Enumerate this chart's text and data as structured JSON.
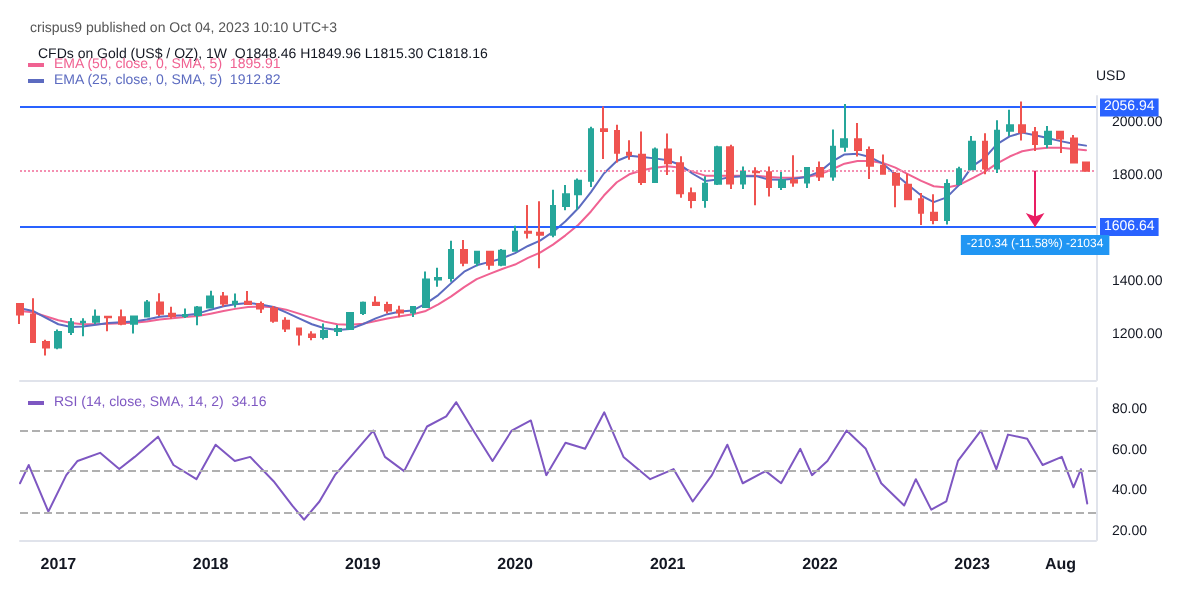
{
  "chart_data": [
    {
      "type": "candlestick",
      "title": "CFDs on Gold (US$ / OZ), 1W  O1848.46 H1849.96 L1815.30 C1818.16",
      "subtitle": "crispus9 published on Oct 04, 2023 10:10 UTC+3",
      "ylabel": "USD",
      "x": [
        "2016-10",
        "2016-11",
        "2016-12",
        "2017-01",
        "2017-02",
        "2017-03",
        "2017-04",
        "2017-05",
        "2017-06",
        "2017-07",
        "2017-08",
        "2017-09",
        "2017-10",
        "2017-11",
        "2017-12",
        "2018-01",
        "2018-02",
        "2018-03",
        "2018-04",
        "2018-05",
        "2018-06",
        "2018-07",
        "2018-08",
        "2018-09",
        "2018-10",
        "2018-11",
        "2018-12",
        "2019-01",
        "2019-02",
        "2019-03",
        "2019-04",
        "2019-05",
        "2019-06",
        "2019-07",
        "2019-08",
        "2019-09",
        "2019-10",
        "2019-11",
        "2019-12",
        "2020-01",
        "2020-02",
        "2020-03",
        "2020-04",
        "2020-05",
        "2020-06",
        "2020-07",
        "2020-08",
        "2020-09",
        "2020-10",
        "2020-11",
        "2020-12",
        "2021-01",
        "2021-02",
        "2021-03",
        "2021-04",
        "2021-05",
        "2021-06",
        "2021-07",
        "2021-08",
        "2021-09",
        "2021-10",
        "2021-11",
        "2021-12",
        "2022-01",
        "2022-02",
        "2022-03",
        "2022-04",
        "2022-05",
        "2022-06",
        "2022-07",
        "2022-08",
        "2022-09",
        "2022-10",
        "2022-11",
        "2022-12",
        "2023-01",
        "2023-02",
        "2023-03",
        "2023-04",
        "2023-05",
        "2023-06",
        "2023-07",
        "2023-08",
        "2023-09",
        "2023-10"
      ],
      "ohlc": [
        [
          1316,
          1317,
          1241,
          1277
        ],
        [
          1277,
          1338,
          1171,
          1173
        ],
        [
          1173,
          1182,
          1122,
          1152
        ],
        [
          1152,
          1220,
          1146,
          1211
        ],
        [
          1211,
          1264,
          1200,
          1248
        ],
        [
          1248,
          1263,
          1195,
          1249
        ],
        [
          1249,
          1296,
          1241,
          1268
        ],
        [
          1268,
          1270,
          1214,
          1266
        ],
        [
          1266,
          1296,
          1236,
          1242
        ],
        [
          1242,
          1272,
          1205,
          1269
        ],
        [
          1269,
          1331,
          1267,
          1322
        ],
        [
          1322,
          1357,
          1271,
          1280
        ],
        [
          1280,
          1306,
          1261,
          1271
        ],
        [
          1271,
          1299,
          1264,
          1275
        ],
        [
          1275,
          1309,
          1236,
          1303
        ],
        [
          1303,
          1366,
          1302,
          1345
        ],
        [
          1345,
          1362,
          1307,
          1318
        ],
        [
          1318,
          1356,
          1303,
          1325
        ],
        [
          1325,
          1365,
          1314,
          1316
        ],
        [
          1316,
          1326,
          1282,
          1299
        ],
        [
          1299,
          1309,
          1246,
          1253
        ],
        [
          1253,
          1266,
          1211,
          1224
        ],
        [
          1224,
          1226,
          1160,
          1201
        ],
        [
          1201,
          1214,
          1180,
          1192
        ],
        [
          1192,
          1243,
          1183,
          1215
        ],
        [
          1215,
          1237,
          1196,
          1222
        ],
        [
          1222,
          1284,
          1221,
          1282
        ],
        [
          1282,
          1326,
          1275,
          1321
        ],
        [
          1321,
          1346,
          1311,
          1313
        ],
        [
          1313,
          1325,
          1281,
          1292
        ],
        [
          1292,
          1310,
          1266,
          1284
        ],
        [
          1284,
          1306,
          1267,
          1305
        ],
        [
          1305,
          1439,
          1305,
          1409
        ],
        [
          1409,
          1453,
          1381,
          1414
        ],
        [
          1414,
          1555,
          1400,
          1520
        ],
        [
          1520,
          1557,
          1459,
          1472
        ],
        [
          1472,
          1517,
          1459,
          1513
        ],
        [
          1513,
          1516,
          1445,
          1464
        ],
        [
          1464,
          1524,
          1459,
          1517
        ],
        [
          1517,
          1611,
          1517,
          1589
        ],
        [
          1589,
          1689,
          1563,
          1585
        ],
        [
          1585,
          1703,
          1451,
          1577
        ],
        [
          1577,
          1747,
          1568,
          1686
        ],
        [
          1686,
          1765,
          1670,
          1730
        ],
        [
          1730,
          1789,
          1671,
          1781
        ],
        [
          1781,
          1984,
          1757,
          1975
        ],
        [
          1975,
          2060,
          1863,
          1968
        ],
        [
          1968,
          1992,
          1849,
          1886
        ],
        [
          1886,
          1933,
          1860,
          1879
        ],
        [
          1879,
          1966,
          1765,
          1776
        ],
        [
          1776,
          1906,
          1776,
          1898
        ],
        [
          1898,
          1959,
          1802,
          1847
        ],
        [
          1847,
          1873,
          1717,
          1734
        ],
        [
          1734,
          1755,
          1677,
          1708
        ],
        [
          1708,
          1798,
          1679,
          1769
        ],
        [
          1769,
          1913,
          1765,
          1907
        ],
        [
          1907,
          1916,
          1750,
          1770
        ],
        [
          1770,
          1834,
          1750,
          1814
        ],
        [
          1814,
          1832,
          1688,
          1813
        ],
        [
          1813,
          1834,
          1721,
          1757
        ],
        [
          1757,
          1814,
          1746,
          1783
        ],
        [
          1783,
          1877,
          1758,
          1774
        ],
        [
          1774,
          1831,
          1753,
          1829
        ],
        [
          1829,
          1853,
          1780,
          1797
        ],
        [
          1797,
          1974,
          1781,
          1909
        ],
        [
          1909,
          2070,
          1890,
          1937
        ],
        [
          1937,
          1998,
          1872,
          1897
        ],
        [
          1897,
          1910,
          1787,
          1837
        ],
        [
          1837,
          1880,
          1805,
          1807
        ],
        [
          1807,
          1814,
          1681,
          1766
        ],
        [
          1766,
          1807,
          1709,
          1711
        ],
        [
          1711,
          1735,
          1614,
          1660
        ],
        [
          1660,
          1730,
          1617,
          1633
        ],
        [
          1633,
          1786,
          1616,
          1768
        ],
        [
          1768,
          1833,
          1766,
          1824
        ],
        [
          1824,
          1949,
          1823,
          1928
        ],
        [
          1928,
          1960,
          1805,
          1827
        ],
        [
          1827,
          2009,
          1810,
          1969
        ],
        [
          1969,
          2048,
          1949,
          1990
        ],
        [
          1990,
          2079,
          1932,
          1963
        ],
        [
          1963,
          1983,
          1893,
          1919
        ],
        [
          1919,
          1987,
          1903,
          1965
        ],
        [
          1965,
          1967,
          1885,
          1940
        ],
        [
          1940,
          1953,
          1846,
          1849
        ],
        [
          1849,
          1850,
          1815,
          1818.16
        ]
      ],
      "colors": [
        "#ef5350",
        "#ef5350",
        "#ef5350",
        "#26a69a",
        "#26a69a",
        "#26a69a",
        "#26a69a",
        "#ef5350",
        "#ef5350",
        "#26a69a",
        "#26a69a",
        "#ef5350",
        "#ef5350",
        "#26a69a",
        "#26a69a",
        "#26a69a",
        "#ef5350",
        "#26a69a",
        "#ef5350",
        "#ef5350",
        "#ef5350",
        "#ef5350",
        "#ef5350",
        "#ef5350",
        "#26a69a",
        "#26a69a",
        "#26a69a",
        "#26a69a",
        "#ef5350",
        "#ef5350",
        "#ef5350",
        "#26a69a",
        "#26a69a",
        "#26a69a",
        "#26a69a",
        "#ef5350",
        "#26a69a",
        "#ef5350",
        "#26a69a",
        "#26a69a",
        "#ef5350",
        "#ef5350",
        "#26a69a",
        "#26a69a",
        "#26a69a",
        "#26a69a",
        "#ef5350",
        "#ef5350",
        "#ef5350",
        "#ef5350",
        "#26a69a",
        "#ef5350",
        "#ef5350",
        "#ef5350",
        "#26a69a",
        "#26a69a",
        "#ef5350",
        "#26a69a",
        "#ef5350",
        "#ef5350",
        "#26a69a",
        "#ef5350",
        "#26a69a",
        "#ef5350",
        "#26a69a",
        "#26a69a",
        "#ef5350",
        "#ef5350",
        "#ef5350",
        "#ef5350",
        "#ef5350",
        "#ef5350",
        "#ef5350",
        "#26a69a",
        "#26a69a",
        "#26a69a",
        "#ef5350",
        "#26a69a",
        "#26a69a",
        "#ef5350",
        "#ef5350",
        "#26a69a",
        "#ef5350",
        "#ef5350",
        "#ef5350"
      ],
      "series": [
        {
          "name": "EMA (50, close, 0, SMA, 5)  1895.91",
          "type": "line",
          "color": "#f06292",
          "values": [
            1290,
            1285,
            1270,
            1255,
            1245,
            1240,
            1240,
            1242,
            1244,
            1246,
            1250,
            1258,
            1263,
            1267,
            1271,
            1280,
            1290,
            1298,
            1305,
            1307,
            1304,
            1295,
            1280,
            1265,
            1250,
            1240,
            1238,
            1242,
            1252,
            1262,
            1270,
            1278,
            1290,
            1315,
            1345,
            1380,
            1410,
            1430,
            1448,
            1465,
            1490,
            1510,
            1540,
            1575,
            1615,
            1665,
            1725,
            1775,
            1805,
            1820,
            1830,
            1835,
            1830,
            1815,
            1800,
            1800,
            1800,
            1800,
            1800,
            1795,
            1792,
            1792,
            1795,
            1805,
            1825,
            1845,
            1855,
            1855,
            1848,
            1830,
            1805,
            1780,
            1760,
            1755,
            1765,
            1790,
            1815,
            1845,
            1872,
            1892,
            1900,
            1905,
            1905,
            1900,
            1896
          ]
        },
        {
          "name": "EMA (25, close, 0, SMA, 5)  1912.82",
          "type": "line",
          "color": "#5c6bc0",
          "values": [
            1300,
            1290,
            1265,
            1240,
            1230,
            1232,
            1238,
            1245,
            1248,
            1250,
            1258,
            1268,
            1272,
            1274,
            1280,
            1295,
            1308,
            1315,
            1320,
            1315,
            1305,
            1285,
            1262,
            1240,
            1225,
            1218,
            1222,
            1240,
            1262,
            1278,
            1288,
            1292,
            1318,
            1350,
            1395,
            1438,
            1462,
            1475,
            1488,
            1508,
            1535,
            1555,
            1588,
            1628,
            1678,
            1738,
            1808,
            1855,
            1875,
            1870,
            1865,
            1858,
            1840,
            1808,
            1780,
            1785,
            1795,
            1798,
            1798,
            1785,
            1784,
            1788,
            1796,
            1815,
            1855,
            1880,
            1882,
            1870,
            1845,
            1805,
            1765,
            1725,
            1700,
            1718,
            1765,
            1835,
            1868,
            1918,
            1948,
            1962,
            1952,
            1942,
            1930,
            1920,
            1913
          ]
        }
      ],
      "xlim": [
        "2016-10-01",
        "2023-10-25"
      ],
      "ylim": [
        1030,
        2100
      ],
      "yticks": [
        {
          "value": 1200,
          "label": "1200.00"
        },
        {
          "value": 1400,
          "label": "1400.00"
        },
        {
          "value": 1800,
          "label": "1800.00"
        },
        {
          "value": 2000,
          "label": "2000.00"
        }
      ],
      "ref_lines": [
        {
          "axis": "y",
          "value": 2056.94,
          "label": "2056.94",
          "color": "#2962ff",
          "line_style": "solid"
        },
        {
          "axis": "y",
          "value": 1606.64,
          "label": "1606.64",
          "color": "#2962ff",
          "line_style": "solid"
        },
        {
          "axis": "y",
          "value": 1818.16,
          "color": "#f48fb1",
          "line_style": "dotted"
        }
      ],
      "annotations": [
        {
          "text": "-210.34 (-11.58%) -21034",
          "x": "2023-06",
          "y": 1606.64
        }
      ],
      "tick_labels": "y",
      "legend": "top left",
      "marker": "none",
      "grid": false
    },
    {
      "type": "line",
      "series": [
        {
          "name": "RSI (14, close, SMA, 14, 2)  34.16",
          "color": "#7e57c2",
          "x": [
            "2016-10-01",
            "2016-10-22",
            "2016-12-08",
            "2017-01-20",
            "2017-02-16",
            "2017-04-11",
            "2017-05-27",
            "2017-07-03",
            "2017-08-28",
            "2017-10-04",
            "2017-11-28",
            "2018-01-13",
            "2018-02-28",
            "2018-04-06",
            "2018-06-01",
            "2018-07-16",
            "2018-08-13",
            "2018-09-19",
            "2018-10-26",
            "2018-12-11",
            "2019-01-26",
            "2019-02-23",
            "2019-04-10",
            "2019-06-04",
            "2019-07-20",
            "2019-08-13",
            "2019-09-23",
            "2019-11-08",
            "2019-12-24",
            "2020-02-08",
            "2020-03-16",
            "2020-05-01",
            "2020-06-17",
            "2020-08-02",
            "2020-09-17",
            "2020-11-20",
            "2021-01-15",
            "2021-03-02",
            "2021-04-17",
            "2021-05-24",
            "2021-06-30",
            "2021-08-24",
            "2021-09-30",
            "2021-11-15",
            "2021-12-13",
            "2022-01-19",
            "2022-03-06",
            "2022-04-21",
            "2022-05-28",
            "2022-07-22",
            "2022-08-19",
            "2022-09-25",
            "2022-10-31",
            "2022-11-28",
            "2023-01-22",
            "2023-02-28",
            "2023-03-28",
            "2023-05-13",
            "2023-06-19",
            "2023-08-04",
            "2023-09-01",
            "2023-09-19",
            "2023-10-04"
          ],
          "values": [
            44,
            53,
            30,
            48,
            55,
            59,
            51,
            57,
            67,
            53,
            46,
            63,
            55,
            57,
            45,
            33,
            26,
            35,
            48,
            59,
            70,
            57,
            50,
            72,
            77,
            84,
            70,
            55,
            70,
            75,
            48,
            64,
            61,
            79,
            57,
            46,
            51,
            35,
            48,
            63,
            44,
            50,
            44,
            61,
            48,
            55,
            70,
            61,
            44,
            33,
            46,
            31,
            35,
            55,
            70,
            51,
            68,
            66,
            53,
            57,
            42,
            51,
            34
          ]
        }
      ],
      "xlim": [
        "2016-10-01",
        "2023-10-25"
      ],
      "xticks": [
        {
          "value": "2017-01-01",
          "label": "2017"
        },
        {
          "value": "2018-01-01",
          "label": "2018"
        },
        {
          "value": "2019-01-01",
          "label": "2019"
        },
        {
          "value": "2020-01-01",
          "label": "2020"
        },
        {
          "value": "2021-01-01",
          "label": "2021"
        },
        {
          "value": "2022-01-01",
          "label": "2022"
        },
        {
          "value": "2023-01-01",
          "label": "2023"
        },
        {
          "value": "2023-08-01",
          "label": "Aug"
        }
      ],
      "ylim": [
        16,
        91
      ],
      "yticks": [
        {
          "value": 20,
          "label": "20.00"
        },
        {
          "value": 40,
          "label": "40.00"
        },
        {
          "value": 60,
          "label": "60.00"
        },
        {
          "value": 80,
          "label": "80.00"
        }
      ],
      "ref_lines": [
        {
          "axis": "y",
          "value": 70,
          "color": "#b0b0b0",
          "line_style": "dashed"
        },
        {
          "axis": "y",
          "value": 50,
          "color": "#b0b0b0",
          "line_style": "dashed"
        },
        {
          "axis": "y",
          "value": 30,
          "color": "#b0b0b0",
          "line_style": "dashed"
        }
      ],
      "legend": "top left",
      "marker": "none",
      "grid": false
    }
  ]
}
